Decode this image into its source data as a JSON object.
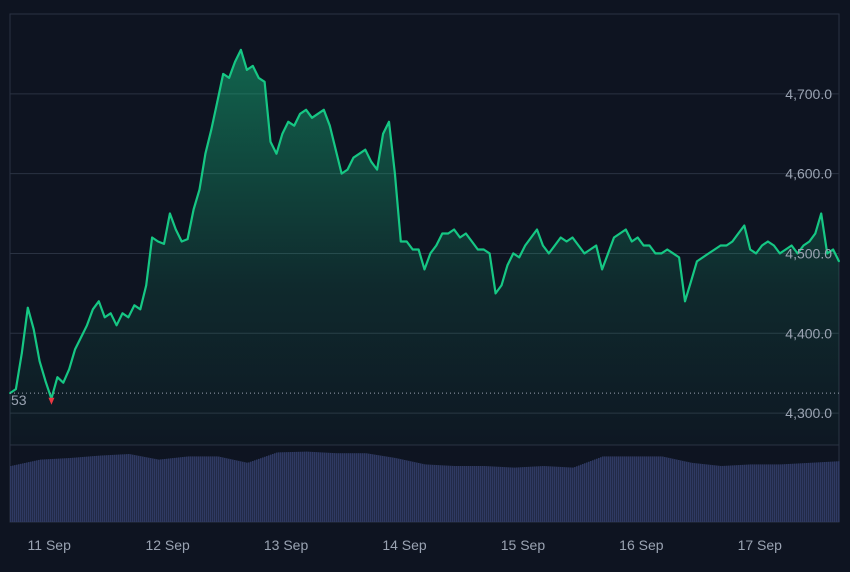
{
  "colors": {
    "background": "#0e1421",
    "grid": "#2a3242",
    "line_up": "#16c784",
    "fill_top": "#16c784",
    "volume": "#2f3a63",
    "baseline_dots": "#9aa3b2",
    "down_marker": "#ea3943",
    "axis_text": "#9aa3b2"
  },
  "chart_data": {
    "type": "area",
    "title": "",
    "xlabel": "",
    "ylabel": "",
    "x_tick_labels": [
      "11 Sep",
      "12 Sep",
      "13 Sep",
      "14 Sep",
      "15 Sep",
      "16 Sep",
      "17 Sep"
    ],
    "y_tick_labels": [
      "4,300.0",
      "4,400.0",
      "4,500.0",
      "4,600.0",
      "4,700.0"
    ],
    "y_ticks": [
      4300,
      4400,
      4500,
      4600,
      4700
    ],
    "ylim": [
      4260,
      4800
    ],
    "xlim": [
      10.5,
      17.5
    ],
    "grid": true,
    "baseline": {
      "value": 4325,
      "label": "53"
    },
    "series": [
      {
        "x": [
          10.5,
          10.55,
          10.6,
          10.65,
          10.7,
          10.75,
          10.8,
          10.85,
          10.9,
          10.95,
          11.0,
          11.05,
          11.1,
          11.15,
          11.2,
          11.25,
          11.3,
          11.35,
          11.4,
          11.45,
          11.5,
          11.55,
          11.6,
          11.65,
          11.7,
          11.75,
          11.8,
          11.85,
          11.9,
          11.95,
          12.0,
          12.05,
          12.1,
          12.15,
          12.2,
          12.25,
          12.3,
          12.35,
          12.4,
          12.45,
          12.5,
          12.55,
          12.6,
          12.65,
          12.7,
          12.75,
          12.8,
          12.85,
          12.9,
          12.95,
          13.0,
          13.05,
          13.1,
          13.15,
          13.2,
          13.25,
          13.3,
          13.35,
          13.4,
          13.45,
          13.5,
          13.55,
          13.6,
          13.65,
          13.7,
          13.75,
          13.8,
          13.85,
          13.9,
          13.95,
          14.0,
          14.05,
          14.1,
          14.15,
          14.2,
          14.25,
          14.3,
          14.35,
          14.4,
          14.45,
          14.5,
          14.55,
          14.6,
          14.65,
          14.7,
          14.75,
          14.8,
          14.85,
          14.9,
          14.95,
          15.0,
          15.05,
          15.1,
          15.15,
          15.2,
          15.25,
          15.3,
          15.35,
          15.4,
          15.45,
          15.5,
          15.55,
          15.6,
          15.65,
          15.7,
          15.75,
          15.8,
          15.85,
          15.9,
          15.95,
          16.0,
          16.05,
          16.1,
          16.15,
          16.2,
          16.25,
          16.3,
          16.35,
          16.4,
          16.45,
          16.5,
          16.55,
          16.6,
          16.65,
          16.7,
          16.75,
          16.8,
          16.85,
          16.9,
          16.95,
          17.0,
          17.05,
          17.1,
          17.15,
          17.2,
          17.25,
          17.3,
          17.35,
          17.4,
          17.45,
          17.5
        ],
        "values": [
          4325,
          4330,
          4375,
          4432,
          4405,
          4365,
          4340,
          4318,
          4345,
          4338,
          4355,
          4380,
          4395,
          4410,
          4430,
          4440,
          4420,
          4425,
          4410,
          4425,
          4420,
          4435,
          4430,
          4460,
          4520,
          4515,
          4512,
          4550,
          4530,
          4515,
          4518,
          4555,
          4580,
          4625,
          4655,
          4690,
          4725,
          4720,
          4740,
          4755,
          4730,
          4735,
          4720,
          4715,
          4640,
          4625,
          4650,
          4665,
          4660,
          4675,
          4680,
          4670,
          4675,
          4680,
          4660,
          4630,
          4600,
          4605,
          4620,
          4625,
          4630,
          4615,
          4605,
          4650,
          4665,
          4600,
          4515,
          4515,
          4505,
          4505,
          4480,
          4500,
          4510,
          4525,
          4525,
          4530,
          4520,
          4525,
          4515,
          4505,
          4505,
          4500,
          4450,
          4460,
          4485,
          4500,
          4495,
          4510,
          4520,
          4530,
          4510,
          4500,
          4510,
          4520,
          4515,
          4520,
          4510,
          4500,
          4505,
          4510,
          4480,
          4500,
          4520,
          4525,
          4530,
          4515,
          4520,
          4510,
          4510,
          4500,
          4500,
          4505,
          4500,
          4495,
          4440,
          4465,
          4490,
          4495,
          4500,
          4505,
          4510,
          4510,
          4515,
          4525,
          4535,
          4505,
          4500,
          4510,
          4515,
          4510,
          4500,
          4505,
          4510,
          4500,
          4510,
          4515,
          4525,
          4550,
          4500,
          4505,
          4490
        ]
      },
      {
        "name": "volume",
        "x": [
          10.5,
          10.75,
          11.0,
          11.25,
          11.5,
          11.75,
          12.0,
          12.25,
          12.5,
          12.75,
          13.0,
          13.25,
          13.5,
          13.75,
          14.0,
          14.25,
          14.5,
          14.75,
          15.0,
          15.25,
          15.5,
          15.75,
          16.0,
          16.25,
          16.5,
          16.75,
          17.0,
          17.25,
          17.5
        ],
        "values": [
          0.7,
          0.78,
          0.8,
          0.83,
          0.85,
          0.78,
          0.82,
          0.82,
          0.74,
          0.87,
          0.88,
          0.86,
          0.86,
          0.8,
          0.72,
          0.7,
          0.7,
          0.68,
          0.7,
          0.68,
          0.82,
          0.82,
          0.82,
          0.74,
          0.7,
          0.72,
          0.72,
          0.74,
          0.76
        ]
      }
    ]
  }
}
